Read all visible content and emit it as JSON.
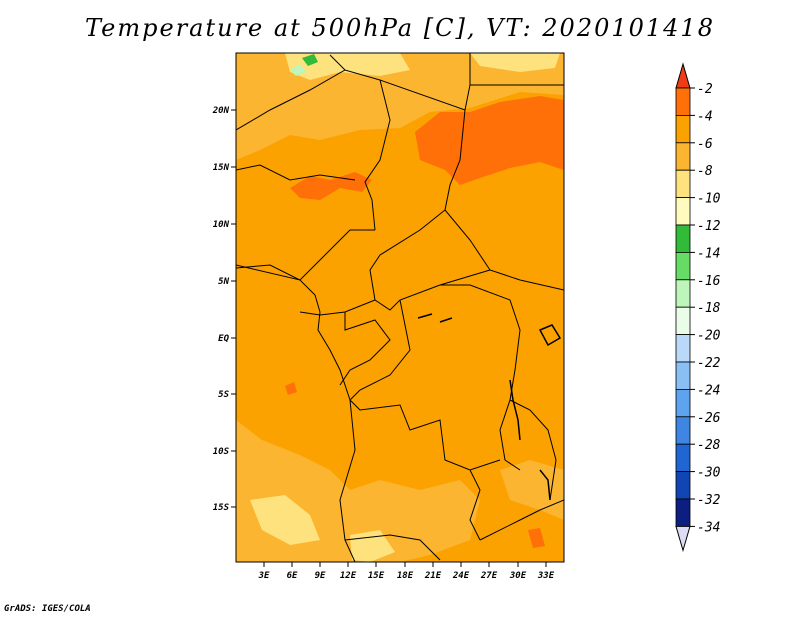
{
  "title": "Temperature at 500hPa [C], VT: 2020101418",
  "credit": "GrADS: IGES/COLA",
  "map": {
    "lat_labels": [
      "20N",
      "15N",
      "10N",
      "5N",
      "EQ",
      "5S",
      "10S",
      "15S"
    ],
    "lon_labels": [
      "3E",
      "6E",
      "9E",
      "12E",
      "15E",
      "18E",
      "21E",
      "24E",
      "27E",
      "30E",
      "33E"
    ]
  },
  "colorbar": {
    "levels": [
      "-2",
      "-4",
      "-6",
      "-8",
      "-10",
      "-12",
      "-14",
      "-16",
      "-18",
      "-20",
      "-22",
      "-24",
      "-26",
      "-28",
      "-30",
      "-32",
      "-34"
    ],
    "colors": [
      "#f03c16",
      "#ff7008",
      "#fba200",
      "#fbb530",
      "#fde27d",
      "#fffbbe",
      "#31bb39",
      "#66dc66",
      "#bdf5ba",
      "#e9fde8",
      "#bad8f8",
      "#8abff4",
      "#5ea3ed",
      "#3f86e3",
      "#1f66d3",
      "#1045b3",
      "#0c1f80",
      "#dcdcf4"
    ]
  }
}
